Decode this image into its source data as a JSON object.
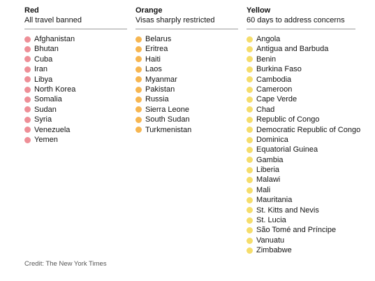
{
  "colors": {
    "red": "#ee8f97",
    "orange": "#f6b651",
    "yellow": "#f5dd6b"
  },
  "columns": [
    {
      "title": "Red",
      "subtitle": "All travel banned",
      "color": "#ee8f97",
      "countries": [
        "Afghanistan",
        "Bhutan",
        "Cuba",
        "Iran",
        "Libya",
        "North Korea",
        "Somalia",
        "Sudan",
        "Syria",
        "Venezuela",
        "Yemen"
      ]
    },
    {
      "title": "Orange",
      "subtitle": "Visas sharply restricted",
      "color": "#f6b651",
      "countries": [
        "Belarus",
        "Eritrea",
        "Haiti",
        "Laos",
        "Myanmar",
        "Pakistan",
        "Russia",
        "Sierra Leone",
        "South Sudan",
        "Turkmenistan"
      ]
    },
    {
      "title": "Yellow",
      "subtitle": "60 days to address concerns",
      "color": "#f5dd6b",
      "countries": [
        "Angola",
        "Antigua and Barbuda",
        "Benin",
        "Burkina Faso",
        "Cambodia",
        "Cameroon",
        "Cape Verde",
        "Chad",
        "Republic of Congo",
        "Democratic Republic of Congo",
        "Dominica",
        "Equatorial Guinea",
        "Gambia",
        "Liberia",
        "Malawi",
        "Mali",
        "Mauritania",
        "St. Kitts and Nevis",
        "St. Lucia",
        "São Tomé and Príncipe",
        "Vanuatu",
        "Zimbabwe"
      ]
    }
  ],
  "credit": "Credit: The New York Times"
}
